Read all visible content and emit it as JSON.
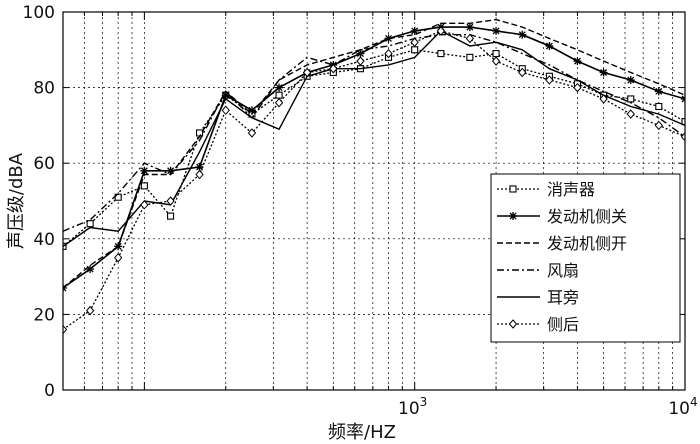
{
  "chart_data": {
    "type": "line",
    "x_scale": "log",
    "xlabel": "频率/HZ",
    "ylabel": "声压级/dBA",
    "xlim": [
      50,
      10000
    ],
    "ylim": [
      0,
      100
    ],
    "yticks": [
      "0",
      "20",
      "40",
      "60",
      "80",
      "100"
    ],
    "xticks": [
      {
        "value": 1000,
        "base": "10",
        "exp": "3"
      },
      {
        "value": 10000,
        "base": "10",
        "exp": "4"
      }
    ],
    "grid": true,
    "legend_position": "right",
    "x": [
      50,
      63,
      80,
      100,
      125,
      160,
      200,
      250,
      315,
      400,
      500,
      630,
      800,
      1000,
      1250,
      1600,
      2000,
      2500,
      3150,
      4000,
      5000,
      6300,
      8000,
      10000
    ],
    "series": [
      {
        "name": "消声器",
        "style": "dotted-square",
        "values": [
          38,
          44,
          51,
          54,
          46,
          68,
          78,
          73,
          78,
          83,
          84,
          85,
          88,
          90,
          89,
          88,
          89,
          85,
          83,
          81,
          78,
          77,
          75,
          71
        ]
      },
      {
        "name": "发动机侧关",
        "style": "solid-star",
        "values": [
          27,
          32,
          38,
          58,
          58,
          59,
          78,
          74,
          80,
          84,
          86,
          89,
          93,
          95,
          96,
          96,
          95,
          94,
          91,
          87,
          84,
          82,
          79,
          77
        ]
      },
      {
        "name": "发动机侧开",
        "style": "dashed",
        "values": [
          27,
          33,
          38,
          57,
          57,
          67,
          79,
          73,
          82,
          86,
          88,
          90,
          93,
          94,
          97,
          97,
          98,
          96,
          93,
          90,
          87,
          84,
          81,
          78
        ]
      },
      {
        "name": "风扇",
        "style": "dashdot",
        "values": [
          42,
          45,
          52,
          60,
          57,
          66,
          79,
          72,
          82,
          88,
          86,
          90,
          91,
          93,
          94,
          94,
          92,
          89,
          86,
          82,
          79,
          76,
          72,
          67
        ]
      },
      {
        "name": "耳旁",
        "style": "solid",
        "values": [
          38,
          43,
          42,
          50,
          49,
          63,
          77,
          72,
          69,
          83,
          85,
          85,
          86,
          88,
          95,
          91,
          92,
          90,
          85,
          82,
          78,
          75,
          73,
          70
        ]
      },
      {
        "name": "侧后",
        "style": "dotted-diamond",
        "values": [
          16,
          21,
          35,
          49,
          50,
          57,
          74,
          68,
          76,
          84,
          85,
          87,
          89,
          92,
          95,
          93,
          87,
          84,
          82,
          80,
          77,
          73,
          70,
          67
        ]
      }
    ]
  }
}
